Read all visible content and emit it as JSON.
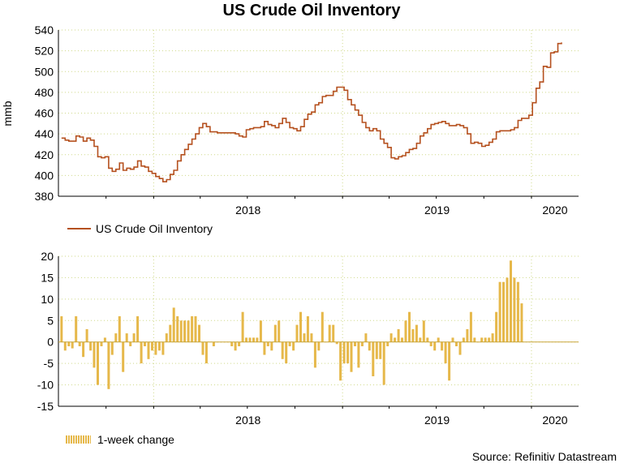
{
  "title": "US Crude Oil Inventory",
  "source": "Source: Refinitiv Datastream",
  "chart_data": [
    {
      "type": "line",
      "ylabel": "mmb",
      "ylim": [
        380,
        540
      ],
      "yticks": [
        380,
        400,
        420,
        440,
        460,
        480,
        500,
        520,
        540
      ],
      "x_start": "2017-07",
      "x_end": "2020-04",
      "year_labels": [
        {
          "label": "2018",
          "x": "2018-01"
        },
        {
          "label": "2019",
          "x": "2019-01"
        },
        {
          "label": "2020",
          "x": "2020-01"
        }
      ],
      "grid": true,
      "color": "#b5501e",
      "series": [
        {
          "name": "US Crude Oil Inventory",
          "points": [
            [
              "2017-07-07",
              436
            ],
            [
              "2017-07-14",
              434
            ],
            [
              "2017-07-21",
              433
            ],
            [
              "2017-07-28",
              433
            ],
            [
              "2017-08-04",
              438
            ],
            [
              "2017-08-11",
              437
            ],
            [
              "2017-08-18",
              433
            ],
            [
              "2017-08-25",
              436
            ],
            [
              "2017-09-01",
              434
            ],
            [
              "2017-09-08",
              428
            ],
            [
              "2017-09-15",
              418
            ],
            [
              "2017-09-22",
              417
            ],
            [
              "2017-09-29",
              418
            ],
            [
              "2017-10-06",
              407
            ],
            [
              "2017-10-13",
              404
            ],
            [
              "2017-10-20",
              406
            ],
            [
              "2017-10-27",
              412
            ],
            [
              "2017-11-03",
              405
            ],
            [
              "2017-11-10",
              407
            ],
            [
              "2017-11-17",
              406
            ],
            [
              "2017-11-24",
              408
            ],
            [
              "2017-12-01",
              414
            ],
            [
              "2017-12-08",
              409
            ],
            [
              "2017-12-15",
              408
            ],
            [
              "2017-12-22",
              404
            ],
            [
              "2017-12-29",
              402
            ],
            [
              "2018-01-05",
              399
            ],
            [
              "2018-01-12",
              397
            ],
            [
              "2018-01-19",
              394
            ],
            [
              "2018-01-26",
              396
            ],
            [
              "2018-02-02",
              401
            ],
            [
              "2018-02-09",
              405
            ],
            [
              "2018-02-16",
              414
            ],
            [
              "2018-02-23",
              420
            ],
            [
              "2018-03-02",
              425
            ],
            [
              "2018-03-09",
              430
            ],
            [
              "2018-03-16",
              435
            ],
            [
              "2018-03-23",
              440
            ],
            [
              "2018-03-30",
              446
            ],
            [
              "2018-04-06",
              450
            ],
            [
              "2018-04-13",
              447
            ],
            [
              "2018-04-20",
              442
            ],
            [
              "2018-04-27",
              442
            ],
            [
              "2018-05-04",
              441
            ],
            [
              "2018-05-11",
              441
            ],
            [
              "2018-05-18",
              441
            ],
            [
              "2018-05-25",
              441
            ],
            [
              "2018-06-01",
              441
            ],
            [
              "2018-06-08",
              440
            ],
            [
              "2018-06-15",
              438
            ],
            [
              "2018-06-22",
              437
            ],
            [
              "2018-06-29",
              444
            ],
            [
              "2018-07-06",
              445
            ],
            [
              "2018-07-13",
              446
            ],
            [
              "2018-07-20",
              446
            ],
            [
              "2018-07-27",
              447
            ],
            [
              "2018-08-03",
              452
            ],
            [
              "2018-08-10",
              449
            ],
            [
              "2018-08-17",
              448
            ],
            [
              "2018-08-24",
              446
            ],
            [
              "2018-08-31",
              450
            ],
            [
              "2018-09-07",
              455
            ],
            [
              "2018-09-14",
              451
            ],
            [
              "2018-09-21",
              446
            ],
            [
              "2018-09-28",
              445
            ],
            [
              "2018-10-05",
              443
            ],
            [
              "2018-10-12",
              447
            ],
            [
              "2018-10-19",
              454
            ],
            [
              "2018-10-26",
              459
            ],
            [
              "2018-11-02",
              461
            ],
            [
              "2018-11-09",
              468
            ],
            [
              "2018-11-16",
              470
            ],
            [
              "2018-11-23",
              476
            ],
            [
              "2018-11-30",
              477
            ],
            [
              "2018-12-07",
              477
            ],
            [
              "2018-12-14",
              481
            ],
            [
              "2018-12-21",
              485
            ],
            [
              "2018-12-28",
              485
            ],
            [
              "2019-01-04",
              482
            ],
            [
              "2019-01-11",
              473
            ],
            [
              "2019-01-18",
              468
            ],
            [
              "2019-01-25",
              463
            ],
            [
              "2019-02-01",
              458
            ],
            [
              "2019-02-08",
              451
            ],
            [
              "2019-02-15",
              446
            ],
            [
              "2019-02-22",
              443
            ],
            [
              "2019-03-01",
              445
            ],
            [
              "2019-03-08",
              443
            ],
            [
              "2019-03-15",
              435
            ],
            [
              "2019-03-22",
              431
            ],
            [
              "2019-03-29",
              427
            ],
            [
              "2019-04-05",
              417
            ],
            [
              "2019-04-12",
              416
            ],
            [
              "2019-04-19",
              418
            ],
            [
              "2019-04-26",
              419
            ],
            [
              "2019-05-03",
              422
            ],
            [
              "2019-05-10",
              425
            ],
            [
              "2019-05-17",
              426
            ],
            [
              "2019-05-24",
              431
            ],
            [
              "2019-05-31",
              438
            ],
            [
              "2019-06-07",
              441
            ],
            [
              "2019-06-14",
              445
            ],
            [
              "2019-06-21",
              449
            ],
            [
              "2019-06-28",
              450
            ],
            [
              "2019-07-05",
              451
            ],
            [
              "2019-07-12",
              452
            ],
            [
              "2019-07-19",
              450
            ],
            [
              "2019-07-26",
              448
            ],
            [
              "2019-08-02",
              448
            ],
            [
              "2019-08-09",
              449
            ],
            [
              "2019-08-16",
              448
            ],
            [
              "2019-08-23",
              446
            ],
            [
              "2019-08-30",
              440
            ],
            [
              "2019-09-06",
              431
            ],
            [
              "2019-09-13",
              432
            ],
            [
              "2019-09-20",
              431
            ],
            [
              "2019-09-27",
              428
            ],
            [
              "2019-10-04",
              429
            ],
            [
              "2019-10-11",
              432
            ],
            [
              "2019-10-18",
              435
            ],
            [
              "2019-10-25",
              442
            ],
            [
              "2019-11-01",
              443
            ],
            [
              "2019-11-08",
              443
            ],
            [
              "2019-11-15",
              443
            ],
            [
              "2019-11-22",
              444
            ],
            [
              "2019-11-29",
              446
            ],
            [
              "2019-12-06",
              453
            ],
            [
              "2019-12-13",
              455
            ],
            [
              "2019-12-20",
              455
            ],
            [
              "2019-12-27",
              458
            ],
            [
              "2020-01-03",
              470
            ],
            [
              "2020-01-10",
              484
            ],
            [
              "2020-01-17",
              490
            ],
            [
              "2020-01-24",
              505
            ],
            [
              "2020-01-31",
              504
            ],
            [
              "2020-02-07",
              518
            ],
            [
              "2020-02-14",
              519
            ],
            [
              "2020-02-21",
              527
            ],
            [
              "2020-02-28",
              528
            ]
          ]
        }
      ]
    },
    {
      "type": "bar",
      "ylim": [
        -15,
        20
      ],
      "yticks": [
        -15,
        -10,
        -5,
        0,
        5,
        10,
        15,
        20
      ],
      "x_start": "2017-07",
      "x_end": "2020-04",
      "year_labels": [
        {
          "label": "2018",
          "x": "2018-01"
        },
        {
          "label": "2019",
          "x": "2019-01"
        },
        {
          "label": "2020",
          "x": "2020-01"
        }
      ],
      "grid": true,
      "color": "#e6b84a",
      "series": [
        {
          "name": "1-week change",
          "start": "2017-07-07",
          "step_days": 7,
          "values": [
            6,
            -2,
            -1,
            -1.5,
            6,
            -1,
            -3.5,
            3,
            -2,
            -6,
            -10,
            -1,
            1,
            -11,
            -3,
            2,
            6,
            -7,
            2,
            -1,
            2,
            6,
            -5,
            -1,
            -4,
            -2,
            -3,
            -2,
            -3,
            2,
            4,
            8,
            6,
            5,
            5,
            5,
            6,
            6,
            4,
            -3,
            -5,
            0,
            -1,
            0,
            0,
            0,
            0,
            -1,
            -2,
            -1,
            7,
            1,
            1,
            1,
            1,
            5,
            -3,
            -1,
            -2,
            4,
            5,
            -4,
            -5,
            -1,
            -2,
            4,
            7,
            2,
            6,
            2,
            -6,
            -2,
            7,
            0,
            4,
            4,
            -0.5,
            -9,
            -5,
            -5,
            -7,
            -1,
            -6,
            -1,
            2,
            -2,
            -8,
            -4,
            -4,
            -10,
            -1,
            2,
            1,
            3,
            1,
            5,
            7,
            3,
            4,
            1,
            5,
            1,
            -1,
            -2,
            1,
            -2,
            -5,
            -9,
            1,
            -1,
            -3,
            1,
            3,
            7,
            1,
            0,
            1,
            1,
            1,
            2,
            7,
            14,
            14,
            15,
            19,
            15,
            14,
            9
          ]
        }
      ]
    }
  ]
}
